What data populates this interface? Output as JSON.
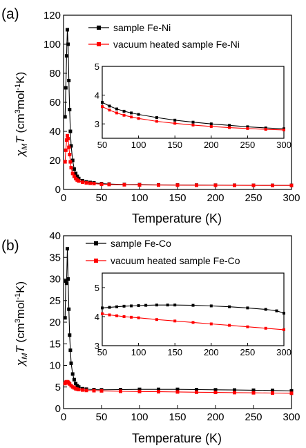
{
  "colors": {
    "series1": "#000000",
    "series2": "#ff0000"
  },
  "panels": [
    {
      "label": "(a)",
      "ylabel_main": "χ",
      "ylabel_sub": "M",
      "ylabel_T": "T",
      "ylabel_unit_open": "(cm",
      "ylabel_unit_exp1": "3",
      "ylabel_unit_mid": "mol",
      "ylabel_unit_exp2": "-1",
      "ylabel_unit_close": "K)",
      "xlabel": "Temperature (K)",
      "legend": [
        "sample Fe-Ni",
        "vacuum heated sample Fe-Ni"
      ]
    },
    {
      "label": "(b)",
      "ylabel_main": "χ",
      "ylabel_sub": "M",
      "ylabel_T": "T",
      "ylabel_unit_open": "(cm",
      "ylabel_unit_exp1": "3",
      "ylabel_unit_mid": "mol",
      "ylabel_unit_exp2": "-1",
      "ylabel_unit_close": "K)",
      "xlabel": "Temperature (K)",
      "legend": [
        "sample Fe-Co",
        "vacuum heated sample Fe-Co"
      ]
    }
  ],
  "chart_data": [
    {
      "type": "scatter",
      "xlabel": "Temperature (K)",
      "ylabel": "χMT (cm3mol-1K)",
      "xlim": [
        0,
        300
      ],
      "ylim": [
        0,
        120
      ],
      "xticks": [
        0,
        50,
        100,
        150,
        200,
        250,
        300
      ],
      "yticks": [
        0,
        20,
        40,
        60,
        80,
        100,
        120
      ],
      "legend_position": "top-right",
      "series": [
        {
          "name": "sample Fe-Ni",
          "x": [
            2,
            3,
            4,
            5,
            6,
            7,
            8,
            9,
            10,
            12,
            14,
            16,
            18,
            20,
            25,
            30,
            35,
            40,
            50,
            60,
            80,
            100,
            125,
            150,
            175,
            200,
            225,
            250,
            275,
            300
          ],
          "y": [
            50,
            70,
            92,
            110,
            100,
            75,
            55,
            40,
            30,
            20,
            14,
            11,
            9,
            7.5,
            6,
            5.2,
            4.8,
            4.5,
            4.0,
            3.7,
            3.4,
            3.3,
            3.15,
            3.05,
            3.0,
            2.95,
            2.9,
            2.85,
            2.8,
            2.8
          ]
        },
        {
          "name": "vacuum heated sample Fe-Ni",
          "x": [
            2,
            3,
            4,
            5,
            6,
            7,
            8,
            9,
            10,
            12,
            14,
            16,
            18,
            20,
            25,
            30,
            35,
            40,
            50,
            60,
            80,
            100,
            125,
            150,
            175,
            200,
            225,
            250,
            275,
            300
          ],
          "y": [
            19,
            27,
            34,
            37,
            35,
            29,
            24,
            19,
            15,
            11,
            9,
            7.5,
            6.5,
            5.8,
            5,
            4.5,
            4.2,
            4.0,
            3.6,
            3.4,
            3.2,
            3.1,
            3.0,
            2.95,
            2.9,
            2.85,
            2.8,
            2.78,
            2.75,
            2.75
          ]
        }
      ],
      "inset": {
        "xlim": [
          50,
          300
        ],
        "ylim": [
          2.5,
          5
        ],
        "xticks": [
          50,
          100,
          150,
          200,
          250,
          300
        ],
        "yticks": [
          3,
          4,
          5
        ],
        "series": [
          {
            "name": "sample Fe-Ni",
            "x": [
              50,
              60,
              70,
              80,
              90,
              100,
              125,
              150,
              175,
              200,
              225,
              250,
              275,
              300
            ],
            "y": [
              3.75,
              3.62,
              3.52,
              3.44,
              3.38,
              3.33,
              3.22,
              3.13,
              3.06,
              3.0,
              2.95,
              2.9,
              2.86,
              2.83
            ]
          },
          {
            "name": "vacuum heated sample Fe-Ni",
            "x": [
              50,
              60,
              70,
              80,
              90,
              100,
              125,
              150,
              175,
              200,
              225,
              250,
              275,
              300
            ],
            "y": [
              3.6,
              3.48,
              3.38,
              3.3,
              3.24,
              3.19,
              3.09,
              3.02,
              2.96,
              2.91,
              2.87,
              2.84,
              2.81,
              2.79
            ]
          }
        ]
      }
    },
    {
      "type": "scatter",
      "xlabel": "Temperature (K)",
      "ylabel": "χMT (cm3mol-1K)",
      "xlim": [
        0,
        300
      ],
      "ylim": [
        0,
        40
      ],
      "xticks": [
        0,
        50,
        100,
        150,
        200,
        250,
        300
      ],
      "yticks": [
        0,
        5,
        10,
        15,
        20,
        25,
        30,
        35,
        40
      ],
      "legend_position": "top-right",
      "series": [
        {
          "name": "sample Fe-Co",
          "x": [
            2,
            3,
            4,
            5,
            6,
            7,
            8,
            9,
            10,
            12,
            14,
            16,
            18,
            20,
            25,
            30,
            40,
            50,
            75,
            100,
            125,
            150,
            175,
            200,
            225,
            250,
            275,
            300
          ],
          "y": [
            21,
            29.5,
            29,
            37,
            30,
            23,
            17,
            13.5,
            10.5,
            8,
            6.7,
            5.8,
            5.3,
            5.0,
            4.6,
            4.5,
            4.4,
            4.35,
            4.4,
            4.45,
            4.45,
            4.45,
            4.4,
            4.35,
            4.3,
            4.25,
            4.2,
            4.1
          ]
        },
        {
          "name": "vacuum heated sample Fe-Co",
          "x": [
            2,
            3,
            4,
            5,
            6,
            7,
            8,
            10,
            12,
            14,
            16,
            18,
            20,
            25,
            30,
            40,
            50,
            75,
            100,
            125,
            150,
            175,
            200,
            225,
            250,
            275,
            300
          ],
          "y": [
            5.8,
            6.1,
            6.2,
            6.2,
            6.1,
            5.9,
            5.7,
            5.3,
            5.0,
            4.8,
            4.6,
            4.5,
            4.4,
            4.3,
            4.2,
            4.15,
            4.1,
            4.0,
            3.95,
            3.9,
            3.85,
            3.8,
            3.75,
            3.7,
            3.65,
            3.6,
            3.55
          ]
        }
      ],
      "inset": {
        "xlim": [
          50,
          300
        ],
        "ylim": [
          3,
          5.5
        ],
        "xticks": [
          50,
          100,
          150,
          200,
          250,
          300
        ],
        "yticks": [
          3,
          4,
          5
        ],
        "series": [
          {
            "name": "sample Fe-Co",
            "x": [
              50,
              60,
              70,
              80,
              90,
              100,
              110,
              125,
              140,
              150,
              175,
              200,
              225,
              250,
              275,
              290,
              300
            ],
            "y": [
              4.3,
              4.32,
              4.34,
              4.36,
              4.37,
              4.38,
              4.39,
              4.4,
              4.4,
              4.4,
              4.39,
              4.37,
              4.34,
              4.3,
              4.25,
              4.2,
              4.12
            ]
          },
          {
            "name": "vacuum heated sample Fe-Co",
            "x": [
              50,
              60,
              70,
              80,
              90,
              100,
              125,
              150,
              175,
              200,
              225,
              250,
              275,
              300
            ],
            "y": [
              4.1,
              4.06,
              4.03,
              4.0,
              3.98,
              3.96,
              3.9,
              3.85,
              3.8,
              3.75,
              3.7,
              3.65,
              3.6,
              3.55
            ]
          }
        ]
      }
    }
  ]
}
